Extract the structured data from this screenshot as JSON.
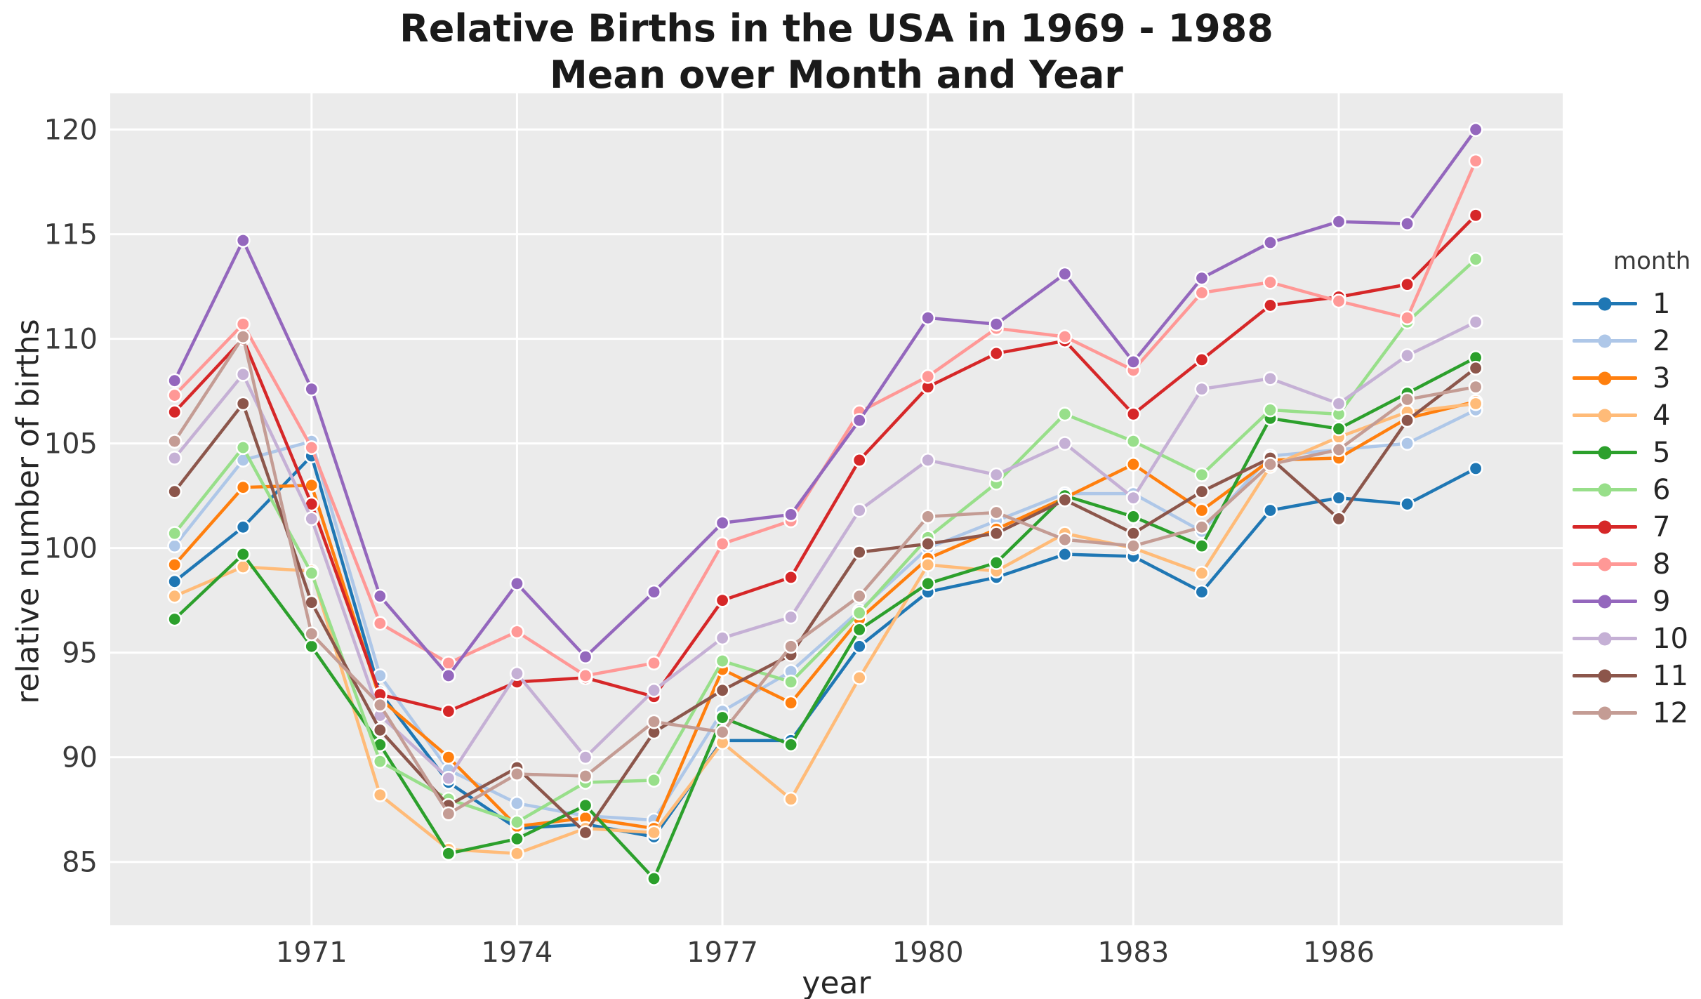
{
  "figure": {
    "title_line1": "Relative Births in the USA in 1969 - 1988",
    "title_line2": "Mean over Month and Year",
    "background": "#ffffff"
  },
  "chart_data": {
    "type": "line",
    "title": "Relative Births in the USA in 1969 - 1988\nMean over Month and Year",
    "xlabel": "year",
    "ylabel": "relative number of births",
    "x": [
      1969,
      1970,
      1971,
      1972,
      1973,
      1974,
      1975,
      1976,
      1977,
      1978,
      1979,
      1980,
      1981,
      1982,
      1983,
      1984,
      1985,
      1986,
      1987,
      1988
    ],
    "xticks": [
      1971,
      1974,
      1977,
      1980,
      1983,
      1986
    ],
    "yticks": [
      85,
      90,
      95,
      100,
      105,
      110,
      115,
      120
    ],
    "xlim": [
      1968.06,
      1989.27
    ],
    "ylim": [
      81.97,
      121.73
    ],
    "grid": true,
    "plot_bg": "#ebebeb",
    "grid_color": "#ffffff",
    "tick_color": "#3a3a3a",
    "text_color": "#262626",
    "marker": "o",
    "legend": {
      "title": "month",
      "position": "right"
    },
    "series": [
      {
        "name": "1",
        "color": "#1f77b4",
        "values": [
          98.4,
          101.0,
          104.4,
          93.1,
          88.8,
          86.6,
          86.8,
          86.2,
          90.8,
          90.8,
          95.3,
          97.9,
          98.6,
          99.7,
          99.6,
          97.9,
          101.8,
          102.4,
          102.1,
          103.8
        ]
      },
      {
        "name": "2",
        "color": "#aec7e8",
        "values": [
          100.1,
          104.2,
          105.1,
          93.9,
          89.4,
          87.8,
          87.2,
          87.0,
          92.2,
          94.1,
          97.0,
          100.0,
          101.3,
          102.6,
          102.6,
          100.8,
          104.4,
          104.7,
          105.0,
          106.6
        ]
      },
      {
        "name": "3",
        "color": "#ff7f0e",
        "values": [
          99.2,
          102.9,
          103.0,
          92.8,
          90.0,
          86.7,
          87.1,
          86.6,
          94.2,
          92.6,
          96.6,
          99.5,
          100.9,
          102.4,
          104.0,
          101.8,
          104.2,
          104.3,
          106.2,
          107.0
        ]
      },
      {
        "name": "4",
        "color": "#ffbb78",
        "values": [
          97.7,
          99.1,
          98.9,
          88.2,
          85.6,
          85.4,
          86.6,
          86.4,
          90.7,
          88.0,
          93.8,
          99.2,
          98.9,
          100.7,
          100.0,
          98.8,
          103.9,
          105.3,
          106.5,
          106.9
        ]
      },
      {
        "name": "5",
        "color": "#2ca02c",
        "values": [
          96.6,
          99.7,
          95.3,
          90.6,
          85.4,
          86.1,
          87.7,
          84.2,
          91.9,
          90.6,
          96.1,
          98.3,
          99.3,
          102.5,
          101.5,
          100.1,
          106.2,
          105.7,
          107.4,
          109.1
        ]
      },
      {
        "name": "6",
        "color": "#98df8a",
        "values": [
          100.7,
          104.8,
          98.8,
          89.8,
          88.0,
          86.9,
          88.8,
          88.9,
          94.6,
          93.6,
          96.9,
          100.5,
          103.1,
          106.4,
          105.1,
          103.5,
          106.6,
          106.4,
          110.8,
          113.8
        ]
      },
      {
        "name": "7",
        "color": "#d62728",
        "values": [
          106.5,
          110.0,
          102.1,
          93.0,
          92.2,
          93.6,
          93.8,
          92.9,
          97.5,
          98.6,
          104.2,
          107.7,
          109.3,
          109.9,
          106.4,
          109.0,
          111.6,
          112.0,
          112.6,
          115.9
        ]
      },
      {
        "name": "8",
        "color": "#ff9896",
        "values": [
          107.3,
          110.7,
          104.8,
          96.4,
          94.5,
          96.0,
          93.9,
          94.5,
          100.2,
          101.3,
          106.5,
          108.2,
          110.5,
          110.1,
          108.5,
          112.2,
          112.7,
          111.8,
          111.0,
          118.5
        ]
      },
      {
        "name": "9",
        "color": "#9467bd",
        "values": [
          108.0,
          114.7,
          107.6,
          97.7,
          93.9,
          98.3,
          94.8,
          97.9,
          101.2,
          101.6,
          106.1,
          111.0,
          110.7,
          113.1,
          108.9,
          112.9,
          114.6,
          115.6,
          115.5,
          120.0
        ]
      },
      {
        "name": "10",
        "color": "#c5b0d5",
        "values": [
          104.3,
          108.3,
          101.4,
          92.0,
          89.0,
          94.0,
          90.0,
          93.2,
          95.7,
          96.7,
          101.8,
          104.2,
          103.5,
          105.0,
          102.4,
          107.6,
          108.1,
          106.9,
          109.2,
          110.8
        ]
      },
      {
        "name": "11",
        "color": "#8c564b",
        "values": [
          102.7,
          106.9,
          97.4,
          91.3,
          87.7,
          89.5,
          86.4,
          91.2,
          93.2,
          94.9,
          99.8,
          100.2,
          100.7,
          102.3,
          100.7,
          102.7,
          104.3,
          101.4,
          106.1,
          108.6
        ]
      },
      {
        "name": "12",
        "color": "#c49c94",
        "values": [
          105.1,
          110.1,
          95.9,
          92.5,
          87.3,
          89.2,
          89.1,
          91.7,
          91.2,
          95.3,
          97.7,
          101.5,
          101.7,
          100.4,
          100.1,
          101.0,
          104.0,
          104.7,
          107.1,
          107.7
        ]
      }
    ]
  }
}
